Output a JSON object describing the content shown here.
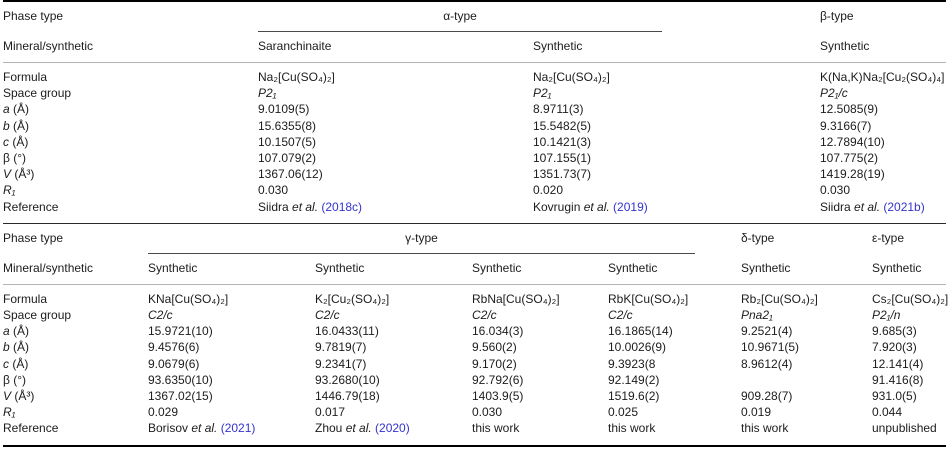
{
  "page": {
    "text_color": "#1c1c1c",
    "link_color": "#3333cc",
    "background": "#ffffff"
  },
  "table1": {
    "header": {
      "phase_type": "Phase type",
      "alpha": "α-type",
      "beta": "β-type"
    },
    "subheader": {
      "label": "Mineral/synthetic",
      "cols": [
        "Saranchinaite",
        "Synthetic",
        "Synthetic"
      ]
    },
    "body": [
      {
        "label_em": "",
        "label": "Formula",
        "c0": "Na₂[Cu(SO₄)₂]",
        "c1": "Na₂[Cu(SO₄)₂]",
        "c2": "K(Na,K)Na₂[Cu₂(SO₄)₄]"
      },
      {
        "label_em": "",
        "label": "Space group",
        "c0": "P2₁",
        "c1": "P2₁",
        "c2": "P2₁/c"
      },
      {
        "label_em": "a",
        "label": " (Å)",
        "c0": "9.0109(5)",
        "c1": "8.9711(3)",
        "c2": "12.5085(9)"
      },
      {
        "label_em": "b",
        "label": " (Å)",
        "c0": "15.6355(8)",
        "c1": "15.5482(5)",
        "c2": "9.3166(7)"
      },
      {
        "label_em": "c",
        "label": " (Å)",
        "c0": "10.1507(5)",
        "c1": "10.1421(3)",
        "c2": "12.7894(10)"
      },
      {
        "label_em": "",
        "label": "β (°)",
        "c0": "107.079(2)",
        "c1": "107.155(1)",
        "c2": "107.775(2)"
      },
      {
        "label_em": "V",
        "label": " (Å³)",
        "c0": "1367.06(12)",
        "c1": "1351.73(7)",
        "c2": "1419.28(19)"
      },
      {
        "label_em": "R₁",
        "label": "",
        "c0": "0.030",
        "c1": "0.020",
        "c2": "0.030"
      }
    ],
    "reference": {
      "label": "Reference",
      "refs": [
        {
          "a": "Siidra ",
          "e": "et al.",
          "y": " (2018c)"
        },
        {
          "a": "Kovrugin ",
          "e": "et al.",
          "y": " (2019)"
        },
        {
          "a": "Siidra ",
          "e": "et al.",
          "y": " (2021b)"
        }
      ]
    }
  },
  "table2": {
    "header": {
      "phase_type": "Phase type",
      "gamma": "γ-type",
      "delta": "δ-type",
      "epsilon": "ε-type"
    },
    "subheader": {
      "label": "Mineral/synthetic",
      "cols": [
        "Synthetic",
        "Synthetic",
        "Synthetic",
        "Synthetic",
        "Synthetic",
        "Synthetic"
      ]
    },
    "body": [
      {
        "label_em": "",
        "label": "Formula",
        "c0": "KNa[Cu(SO₄)₂]",
        "c1": "K₂[Cu₂(SO₄)₂]",
        "c2": "RbNa[Cu(SO₄)₂]",
        "c3": "RbK[Cu(SO₄)₂]",
        "c4": "Rb₂[Cu(SO₄)₂]",
        "c5": "Cs₂[Cu(SO₄)₂]"
      },
      {
        "label_em": "",
        "label": "Space group",
        "c0": "C2/c",
        "c1": "C2/c",
        "c2": "C2/c",
        "c3": "C2/c",
        "c4": "Pna2₁",
        "c5": "P2₁/n"
      },
      {
        "label_em": "a",
        "label": " (Å)",
        "c0": "15.9721(10)",
        "c1": "16.0433(11)",
        "c2": "16.034(3)",
        "c3": "16.1865(14)",
        "c4": "9.2521(4)",
        "c5": "9.685(3)"
      },
      {
        "label_em": "b",
        "label": " (Å)",
        "c0": "9.4576(6)",
        "c1": "9.7819(7)",
        "c2": "9.560(2)",
        "c3": "10.0026(9)",
        "c4": "10.9671(5)",
        "c5": "7.920(3)"
      },
      {
        "label_em": "c",
        "label": " (Å)",
        "c0": "9.0679(6)",
        "c1": "9.2341(7)",
        "c2": "9.170(2)",
        "c3": "9.3923(8",
        "c4": "8.9612(4)",
        "c5": "12.141(4)"
      },
      {
        "label_em": "",
        "label": "β (°)",
        "c0": "93.6350(10)",
        "c1": "93.2680(10)",
        "c2": "92.792(6)",
        "c3": "92.149(2)",
        "c4": "",
        "c5": "91.416(8)"
      },
      {
        "label_em": "V",
        "label": " (Å³)",
        "c0": "1367.02(15)",
        "c1": "1446.79(18)",
        "c2": "1403.9(5)",
        "c3": "1519.6(2)",
        "c4": "909.28(7)",
        "c5": "931.0(5)"
      },
      {
        "label_em": "R₁",
        "label": "",
        "c0": "0.029",
        "c1": "0.017",
        "c2": "0.030",
        "c3": "0.025",
        "c4": "0.019",
        "c5": "0.044"
      }
    ],
    "reference": {
      "label": "Reference",
      "refs": [
        {
          "a": "Borisov ",
          "e": "et al.",
          "y": " (2021)"
        },
        {
          "a": "Zhou ",
          "e": "et al.",
          "y": " (2020)"
        },
        {
          "a": "this work",
          "e": "",
          "y": ""
        },
        {
          "a": "this work",
          "e": "",
          "y": ""
        },
        {
          "a": "this work",
          "e": "",
          "y": ""
        },
        {
          "a": "unpublished",
          "e": "",
          "y": ""
        }
      ]
    }
  }
}
